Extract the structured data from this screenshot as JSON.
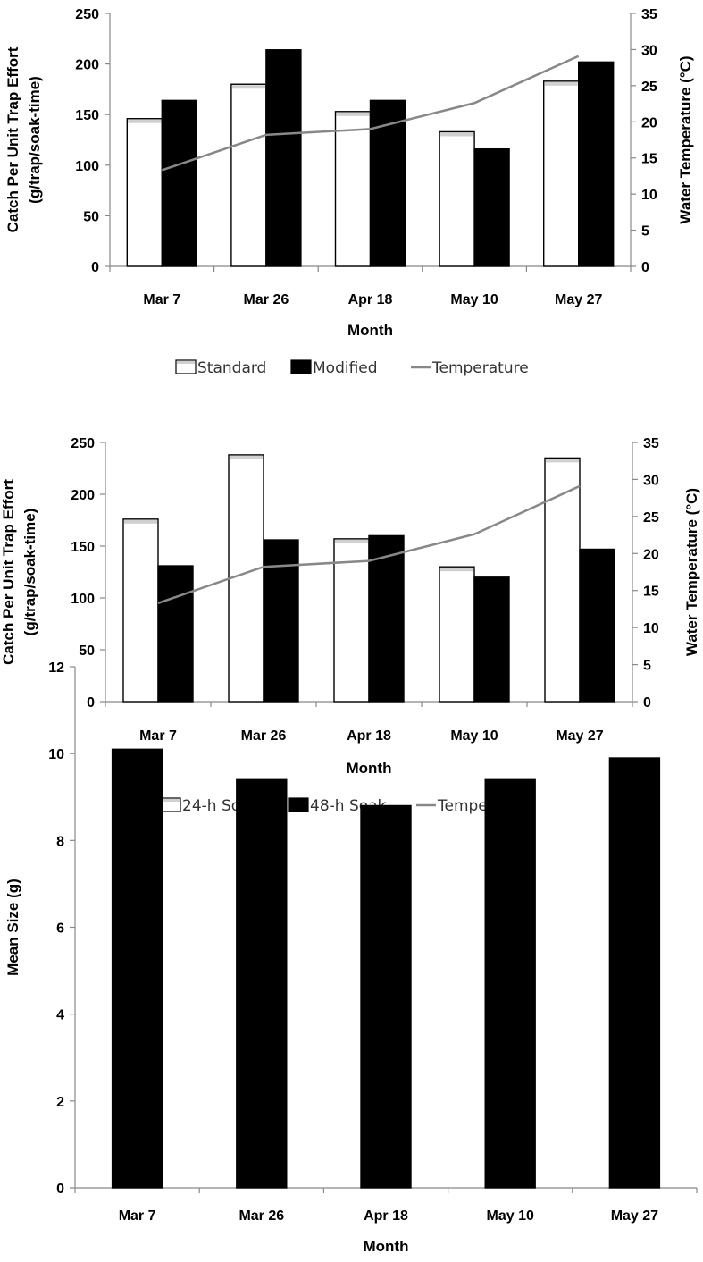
{
  "chart_data": [
    {
      "type": "bar",
      "categories": [
        "Mar 7",
        "Mar 26",
        "Apr  18",
        "May 10",
        "May 27"
      ],
      "series": [
        {
          "name": "Standard",
          "kind": "bar",
          "axis": "left",
          "values": [
            146,
            180,
            153,
            133,
            183
          ]
        },
        {
          "name": "Modified",
          "kind": "bar",
          "axis": "left",
          "values": [
            164,
            214,
            164,
            116,
            202
          ]
        },
        {
          "name": "Temperature",
          "kind": "line",
          "axis": "right",
          "values": [
            13.3,
            18.2,
            19.0,
            22.6,
            29.1
          ]
        }
      ],
      "xlabel": "Month",
      "ylabel_lines": [
        "Catch Per Unit Trap Effort",
        "(g/trap/soak-time)"
      ],
      "y2label": "Water Temperature (°C)",
      "ylim": [
        0,
        250
      ],
      "yticks": [
        0,
        50,
        100,
        150,
        200,
        250
      ],
      "y2lim": [
        0,
        35
      ],
      "y2ticks": [
        0,
        5,
        10,
        15,
        20,
        25,
        30,
        35
      ],
      "grid": false,
      "legend_position": "bottom",
      "colors": {
        "bar1": "#ffffff",
        "bar2": "#000000",
        "line": "#888888"
      }
    },
    {
      "type": "bar",
      "categories": [
        "Mar 7",
        "Mar 26",
        "Apr  18",
        "May 10",
        "May 27"
      ],
      "series": [
        {
          "name": "24-h Soak",
          "kind": "bar",
          "axis": "left",
          "values": [
            176,
            238,
            157,
            130,
            235
          ]
        },
        {
          "name": "48-h Soak",
          "kind": "bar",
          "axis": "left",
          "values": [
            131,
            156,
            160,
            120,
            147
          ]
        },
        {
          "name": "Temperature",
          "kind": "line",
          "axis": "right",
          "values": [
            13.3,
            18.2,
            19.0,
            22.6,
            29.1
          ]
        }
      ],
      "xlabel": "Month",
      "ylabel_lines": [
        "Catch Per Unit Trap Effort",
        "(g/trap/soak-time)"
      ],
      "y2label": "Water Temperature (°C)",
      "ylim": [
        0,
        250
      ],
      "yticks": [
        0,
        50,
        100,
        150,
        200,
        250
      ],
      "y2lim": [
        0,
        35
      ],
      "y2ticks": [
        0,
        5,
        10,
        15,
        20,
        25,
        30,
        35
      ],
      "grid": false,
      "legend_position": "bottom",
      "colors": {
        "bar1": "#ffffff",
        "bar2": "#000000",
        "line": "#888888"
      }
    },
    {
      "type": "bar",
      "categories": [
        "Mar 7",
        "Mar 26",
        "Apr 18",
        "May 10",
        "May 27"
      ],
      "series": [
        {
          "kind": "bar",
          "axis": "left",
          "values": [
            10.1,
            9.4,
            8.8,
            9.4,
            9.9
          ]
        }
      ],
      "xlabel": "Month",
      "ylabel_lines": [
        "Mean Size (g)"
      ],
      "ylim": [
        0,
        12
      ],
      "yticks": [
        0,
        2,
        4,
        6,
        8,
        10,
        12
      ],
      "grid": false,
      "colors": {
        "bar1": "#000000"
      }
    }
  ]
}
